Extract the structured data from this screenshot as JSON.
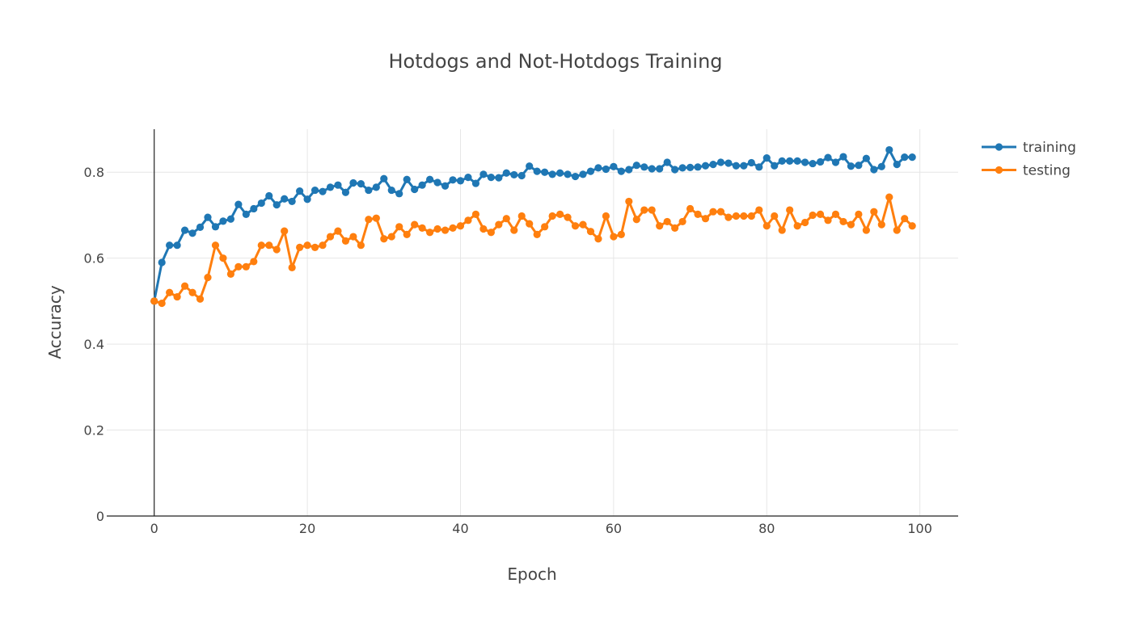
{
  "chart_data": {
    "type": "line",
    "title": "Hotdogs and Not-Hotdogs Training",
    "xlabel": "Epoch",
    "ylabel": "Accuracy",
    "xlim": [
      -6.2,
      105
    ],
    "ylim": [
      0,
      0.9
    ],
    "xticks": [
      0,
      20,
      40,
      60,
      80,
      100
    ],
    "xtick_labels": [
      "0",
      "20",
      "40",
      "60",
      "80",
      "100"
    ],
    "yticks": [
      0,
      0.2,
      0.4,
      0.6,
      0.8
    ],
    "ytick_labels": [
      "0",
      "0.2",
      "0.4",
      "0.6",
      "0.8"
    ],
    "grid": true,
    "legend_position": "top-right",
    "series": [
      {
        "name": "training",
        "color": "#1f77b4",
        "x": [
          0,
          1,
          2,
          3,
          4,
          5,
          6,
          7,
          8,
          9,
          10,
          11,
          12,
          13,
          14,
          15,
          16,
          17,
          18,
          19,
          20,
          21,
          22,
          23,
          24,
          25,
          26,
          27,
          28,
          29,
          30,
          31,
          32,
          33,
          34,
          35,
          36,
          37,
          38,
          39,
          40,
          41,
          42,
          43,
          44,
          45,
          46,
          47,
          48,
          49,
          50,
          51,
          52,
          53,
          54,
          55,
          56,
          57,
          58,
          59,
          60,
          61,
          62,
          63,
          64,
          65,
          66,
          67,
          68,
          69,
          70,
          71,
          72,
          73,
          74,
          75,
          76,
          77,
          78,
          79,
          80,
          81,
          82,
          83,
          84,
          85,
          86,
          87,
          88,
          89,
          90,
          91,
          92,
          93,
          94,
          95,
          96,
          97,
          98,
          99
        ],
        "values": [
          0.5,
          0.59,
          0.63,
          0.63,
          0.665,
          0.658,
          0.672,
          0.695,
          0.673,
          0.686,
          0.691,
          0.725,
          0.702,
          0.715,
          0.728,
          0.745,
          0.724,
          0.738,
          0.732,
          0.756,
          0.737,
          0.758,
          0.755,
          0.765,
          0.77,
          0.753,
          0.775,
          0.773,
          0.758,
          0.765,
          0.785,
          0.758,
          0.75,
          0.783,
          0.76,
          0.77,
          0.783,
          0.776,
          0.768,
          0.782,
          0.78,
          0.788,
          0.774,
          0.795,
          0.788,
          0.787,
          0.798,
          0.794,
          0.792,
          0.814,
          0.802,
          0.8,
          0.795,
          0.798,
          0.795,
          0.79,
          0.795,
          0.802,
          0.81,
          0.807,
          0.813,
          0.802,
          0.806,
          0.816,
          0.812,
          0.808,
          0.808,
          0.823,
          0.806,
          0.81,
          0.811,
          0.812,
          0.815,
          0.818,
          0.823,
          0.821,
          0.815,
          0.815,
          0.822,
          0.812,
          0.833,
          0.815,
          0.826,
          0.826,
          0.826,
          0.823,
          0.82,
          0.824,
          0.834,
          0.823,
          0.836,
          0.814,
          0.816,
          0.832,
          0.806,
          0.813,
          0.852,
          0.818,
          0.835,
          0.835
        ]
      },
      {
        "name": "testing",
        "color": "#ff7f0e",
        "x": [
          0,
          1,
          2,
          3,
          4,
          5,
          6,
          7,
          8,
          9,
          10,
          11,
          12,
          13,
          14,
          15,
          16,
          17,
          18,
          19,
          20,
          21,
          22,
          23,
          24,
          25,
          26,
          27,
          28,
          29,
          30,
          31,
          32,
          33,
          34,
          35,
          36,
          37,
          38,
          39,
          40,
          41,
          42,
          43,
          44,
          45,
          46,
          47,
          48,
          49,
          50,
          51,
          52,
          53,
          54,
          55,
          56,
          57,
          58,
          59,
          60,
          61,
          62,
          63,
          64,
          65,
          66,
          67,
          68,
          69,
          70,
          71,
          72,
          73,
          74,
          75,
          76,
          77,
          78,
          79,
          80,
          81,
          82,
          83,
          84,
          85,
          86,
          87,
          88,
          89,
          90,
          91,
          92,
          93,
          94,
          95,
          96,
          97,
          98,
          99
        ],
        "values": [
          0.5,
          0.495,
          0.52,
          0.51,
          0.535,
          0.52,
          0.505,
          0.555,
          0.63,
          0.6,
          0.563,
          0.58,
          0.58,
          0.592,
          0.63,
          0.63,
          0.62,
          0.663,
          0.578,
          0.625,
          0.63,
          0.625,
          0.63,
          0.65,
          0.663,
          0.64,
          0.65,
          0.63,
          0.69,
          0.693,
          0.645,
          0.65,
          0.673,
          0.655,
          0.678,
          0.67,
          0.66,
          0.668,
          0.665,
          0.67,
          0.675,
          0.688,
          0.702,
          0.668,
          0.66,
          0.678,
          0.692,
          0.665,
          0.698,
          0.68,
          0.655,
          0.673,
          0.698,
          0.702,
          0.695,
          0.675,
          0.678,
          0.662,
          0.645,
          0.698,
          0.65,
          0.655,
          0.732,
          0.69,
          0.712,
          0.712,
          0.675,
          0.685,
          0.67,
          0.685,
          0.715,
          0.702,
          0.692,
          0.708,
          0.708,
          0.695,
          0.698,
          0.698,
          0.698,
          0.712,
          0.675,
          0.698,
          0.665,
          0.712,
          0.675,
          0.683,
          0.7,
          0.702,
          0.688,
          0.702,
          0.685,
          0.678,
          0.702,
          0.665,
          0.708,
          0.678,
          0.742,
          0.665,
          0.692,
          0.675
        ]
      }
    ]
  }
}
